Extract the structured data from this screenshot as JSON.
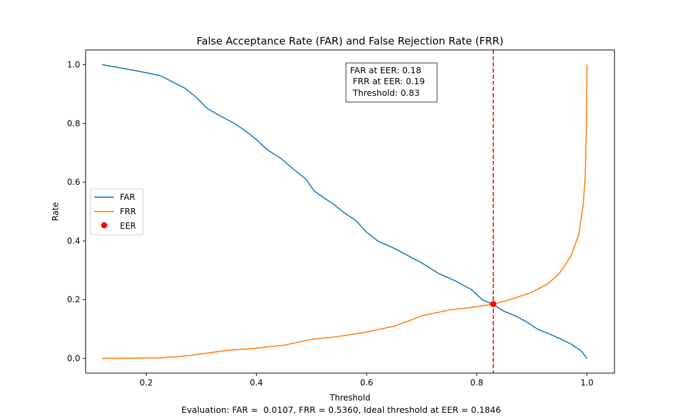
{
  "chart_data": {
    "type": "line",
    "title": "False Acceptance Rate (FAR) and False Rejection Rate (FRR)",
    "xlabel": "Threshold",
    "ylabel": "Rate",
    "xlim": [
      0.09,
      1.05
    ],
    "ylim": [
      -0.05,
      1.05
    ],
    "x_ticks": [
      0.2,
      0.4,
      0.6,
      0.8,
      1.0
    ],
    "x_tick_labels": [
      "0.2",
      "0.4",
      "0.6",
      "0.8",
      "1.0"
    ],
    "y_ticks": [
      0.0,
      0.2,
      0.4,
      0.6,
      0.8,
      1.0
    ],
    "y_tick_labels": [
      "0.0",
      "0.2",
      "0.4",
      "0.6",
      "0.8",
      "1.0"
    ],
    "grid": false,
    "legend_position": "center-left",
    "series": [
      {
        "name": "FAR",
        "color": "#1f77b4",
        "x": [
          0.12,
          0.18,
          0.225,
          0.27,
          0.29,
          0.31,
          0.33,
          0.36,
          0.38,
          0.4,
          0.42,
          0.445,
          0.47,
          0.49,
          0.505,
          0.52,
          0.54,
          0.56,
          0.58,
          0.6,
          0.62,
          0.65,
          0.68,
          0.7,
          0.73,
          0.76,
          0.79,
          0.81,
          0.83,
          0.85,
          0.87,
          0.89,
          0.91,
          0.93,
          0.95,
          0.97,
          0.99,
          1.0
        ],
        "values": [
          1.0,
          0.98,
          0.963,
          0.92,
          0.89,
          0.852,
          0.83,
          0.8,
          0.775,
          0.745,
          0.71,
          0.68,
          0.64,
          0.61,
          0.57,
          0.55,
          0.525,
          0.495,
          0.47,
          0.43,
          0.4,
          0.375,
          0.345,
          0.325,
          0.29,
          0.265,
          0.235,
          0.2,
          0.184,
          0.16,
          0.145,
          0.125,
          0.1,
          0.085,
          0.068,
          0.05,
          0.025,
          0.0
        ]
      },
      {
        "name": "FRR",
        "color": "#ff7f0e",
        "x": [
          0.12,
          0.225,
          0.27,
          0.31,
          0.35,
          0.4,
          0.45,
          0.5,
          0.55,
          0.6,
          0.65,
          0.68,
          0.7,
          0.75,
          0.8,
          0.83,
          0.86,
          0.9,
          0.93,
          0.95,
          0.97,
          0.985,
          0.993,
          0.997,
          0.999,
          1.0
        ],
        "values": [
          0.0,
          0.002,
          0.008,
          0.018,
          0.028,
          0.035,
          0.045,
          0.065,
          0.075,
          0.09,
          0.11,
          0.13,
          0.145,
          0.165,
          0.176,
          0.185,
          0.2,
          0.225,
          0.255,
          0.29,
          0.345,
          0.42,
          0.52,
          0.62,
          0.8,
          1.0
        ]
      },
      {
        "name": "EER",
        "type": "scatter",
        "color": "#ff0000",
        "x": [
          0.83
        ],
        "values": [
          0.185
        ]
      }
    ],
    "vline": {
      "x": 0.83,
      "color": "#ff0000",
      "style": "dashed"
    },
    "annotation": [
      "FAR at EER: 0.18",
      " FRR at EER: 0.19",
      " Threshold: 0.83"
    ],
    "footer": "Evaluation: FAR =  0.0107, FRR = 0.5360, Ideal threshold at EER = 0.1846"
  }
}
